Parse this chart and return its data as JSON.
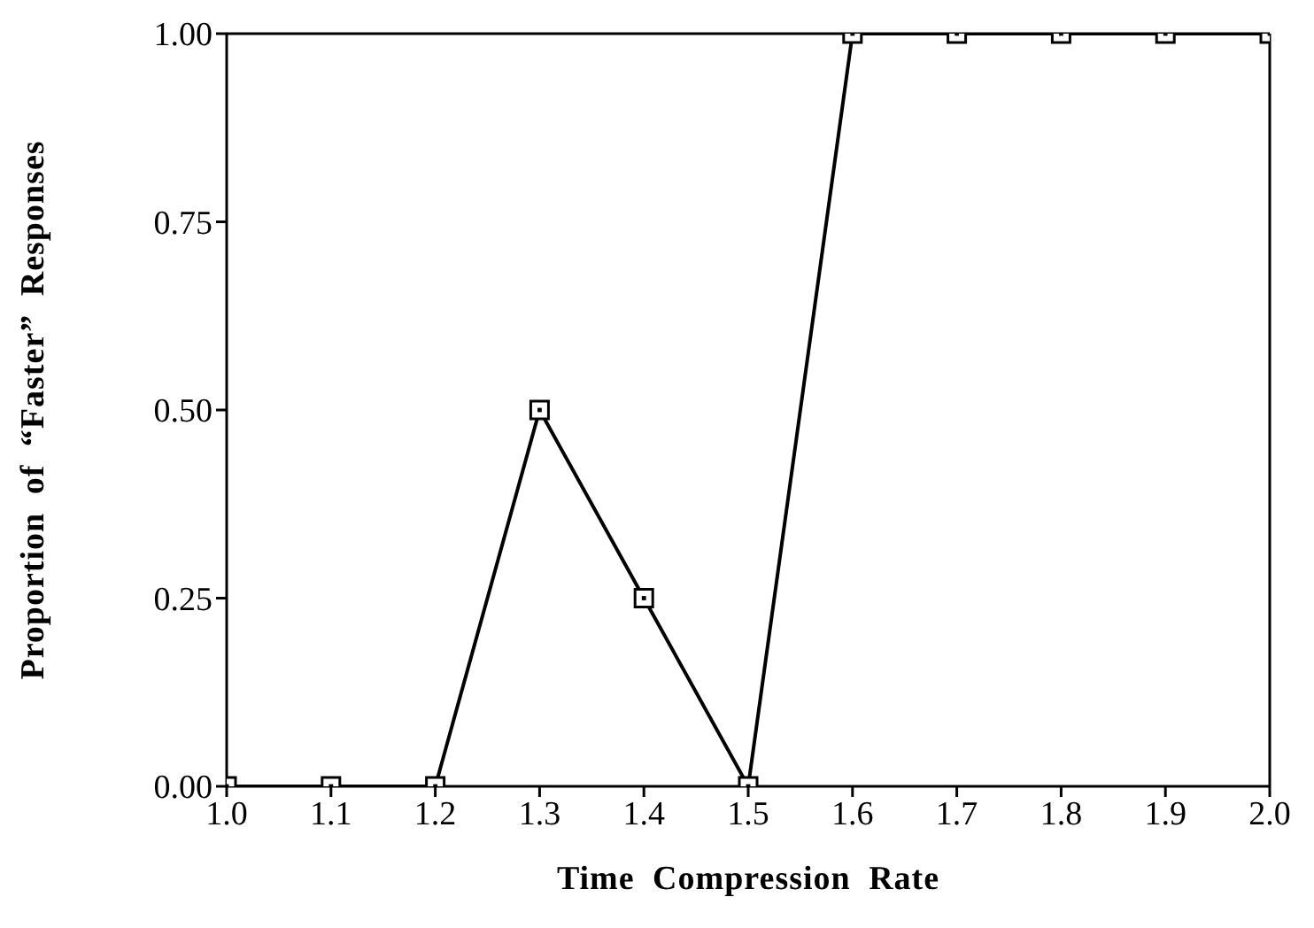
{
  "chart_data": {
    "type": "line",
    "xlabel": "Time Compression Rate",
    "ylabel": "Proportion of “Faster” Responses",
    "x": [
      1.0,
      1.1,
      1.2,
      1.3,
      1.4,
      1.5,
      1.6,
      1.7,
      1.8,
      1.9,
      2.0
    ],
    "series": [
      {
        "color": "#000000",
        "values": [
          0,
          0,
          0,
          0.5,
          0.25,
          0,
          1,
          1,
          1,
          1,
          1
        ]
      }
    ],
    "xlim": [
      1.0,
      2.0
    ],
    "xticks": [
      {
        "value": 1.0,
        "label": "1.0"
      },
      {
        "value": 1.1,
        "label": "1.1"
      },
      {
        "value": 1.2,
        "label": "1.2"
      },
      {
        "value": 1.3,
        "label": "1.3"
      },
      {
        "value": 1.4,
        "label": "1.4"
      },
      {
        "value": 1.5,
        "label": "1.5"
      },
      {
        "value": 1.6,
        "label": "1.6"
      },
      {
        "value": 1.7,
        "label": "1.7"
      },
      {
        "value": 1.8,
        "label": "1.8"
      },
      {
        "value": 1.9,
        "label": "1.9"
      },
      {
        "value": 2.0,
        "label": "2.0"
      }
    ],
    "ylim": [
      0,
      1
    ],
    "yticks": [
      {
        "value": 0,
        "label": "0.00"
      },
      {
        "value": 0.25,
        "label": "0.25"
      },
      {
        "value": 0.5,
        "label": "0.50"
      },
      {
        "value": 0.75,
        "label": "0.75"
      },
      {
        "value": 1,
        "label": "1.00"
      }
    ],
    "grid": false,
    "legend": false,
    "marker": "square",
    "line_style": "solid"
  }
}
